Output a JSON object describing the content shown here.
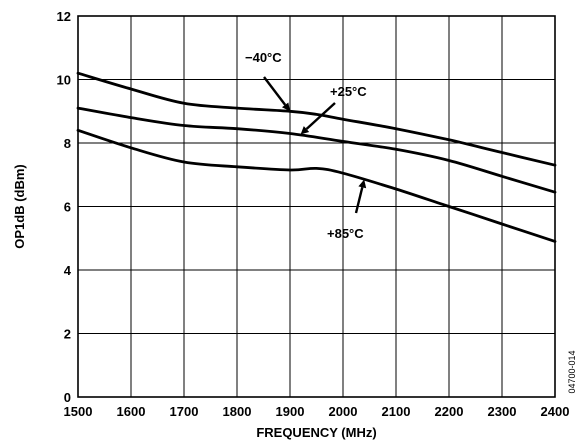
{
  "chart_data": {
    "type": "line",
    "title": "",
    "xlabel": "FREQUENCY (MHz)",
    "ylabel": "OP1dB (dBm)",
    "xlim": [
      1500,
      2400
    ],
    "ylim": [
      0,
      12
    ],
    "x_ticks": [
      1500,
      1600,
      1700,
      1800,
      1900,
      2000,
      2100,
      2200,
      2300,
      2400
    ],
    "y_ticks": [
      0,
      2,
      4,
      6,
      8,
      10,
      12
    ],
    "grid": true,
    "series": [
      {
        "name": "−40°C",
        "x": [
          1500,
          1600,
          1700,
          1800,
          1900,
          1950,
          2000,
          2100,
          2200,
          2300,
          2400
        ],
        "values": [
          10.2,
          9.7,
          9.25,
          9.1,
          9.0,
          8.9,
          8.75,
          8.45,
          8.1,
          7.7,
          7.3
        ]
      },
      {
        "name": "+25°C",
        "x": [
          1500,
          1600,
          1700,
          1800,
          1900,
          2000,
          2100,
          2200,
          2300,
          2400
        ],
        "values": [
          9.1,
          8.8,
          8.55,
          8.45,
          8.3,
          8.05,
          7.8,
          7.45,
          6.95,
          6.45
        ]
      },
      {
        "name": "+85°C",
        "x": [
          1500,
          1600,
          1700,
          1800,
          1900,
          1950,
          2000,
          2100,
          2200,
          2300,
          2400
        ],
        "values": [
          8.4,
          7.85,
          7.4,
          7.25,
          7.15,
          7.2,
          7.05,
          6.55,
          6.0,
          5.45,
          4.9
        ]
      }
    ],
    "annotations": [
      {
        "text": "−40°C",
        "series": 0,
        "arrow_to": [
          1900,
          9.0
        ]
      },
      {
        "text": "+25°C",
        "series": 1,
        "arrow_to": [
          1920,
          8.27
        ]
      },
      {
        "text": "+85°C",
        "series": 2,
        "arrow_to": [
          2040,
          6.85
        ]
      }
    ],
    "figure_id": "04700-014"
  }
}
